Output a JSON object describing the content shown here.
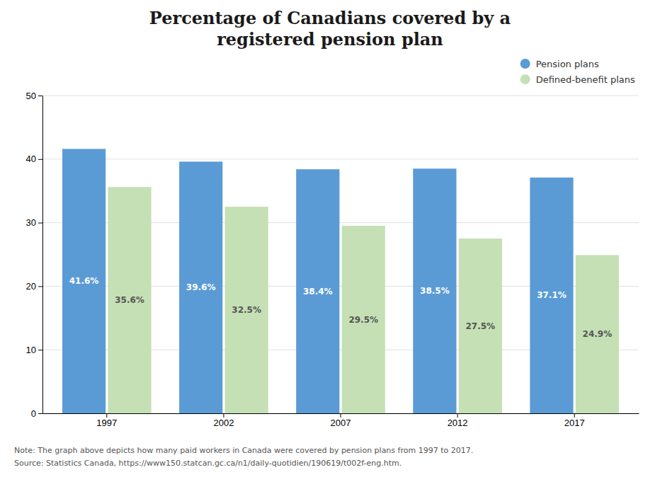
{
  "chart_data": {
    "type": "bar",
    "title": "Percentage of Canadians covered by a\nregistered pension plan",
    "categories": [
      "1997",
      "2002",
      "2007",
      "2012",
      "2017"
    ],
    "series": [
      {
        "name": "Pension plans",
        "color": "#5B9BD5",
        "values": [
          41.6,
          39.6,
          38.4,
          38.5,
          37.1
        ],
        "value_labels": [
          "41.6%",
          "39.6%",
          "38.4%",
          "38.5%",
          "37.1%"
        ]
      },
      {
        "name": "Defined-benefit plans",
        "color": "#C5E0B4",
        "values": [
          35.6,
          32.5,
          29.5,
          27.5,
          24.9
        ],
        "value_labels": [
          "35.6%",
          "32.5%",
          "29.5%",
          "27.5%",
          "24.9%"
        ]
      }
    ],
    "ylim": [
      0,
      50
    ],
    "yticks": [
      0,
      10,
      20,
      30,
      40,
      50
    ],
    "grid": true,
    "legend": "upper right",
    "data_labels": true,
    "annotations": [
      "Note: The graph above depicts how many paid workers in Canada were covered by pension plans from 1997 to 2017.",
      "Source: Statistics Canada, https://www150.statcan.gc.ca/n1/daily-quotidien/190619/t002f-eng.htm."
    ]
  }
}
